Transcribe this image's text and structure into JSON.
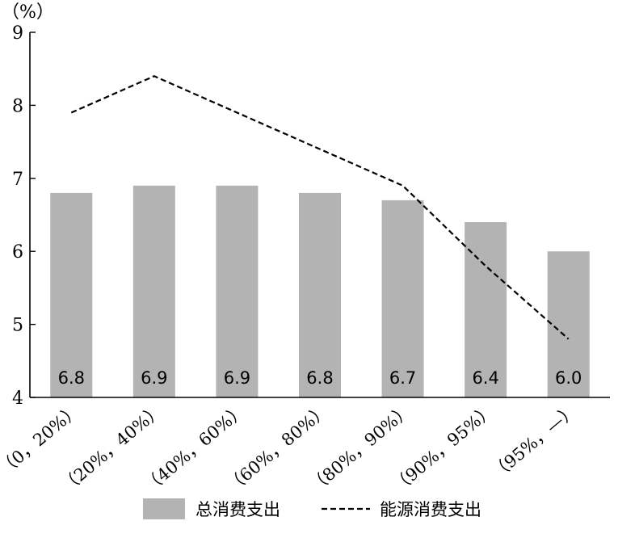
{
  "chart_data": {
    "type": "bar",
    "y_unit": "（%）",
    "categories": [
      "（0，20%）",
      "（20%，40%）",
      "（40%，60%）",
      "（60%，80%）",
      "（80%，90%）",
      "（90%，95%）",
      "（95%，—）"
    ],
    "ylim": [
      4,
      9
    ],
    "yticks": [
      "4",
      "5",
      "6",
      "7",
      "8",
      "9"
    ],
    "grid": false,
    "legend_position": "bottom",
    "series": [
      {
        "name": "总消费支出",
        "kind": "bar",
        "color": "#b3b3b3",
        "values": [
          6.8,
          6.9,
          6.9,
          6.8,
          6.7,
          6.4,
          6.0
        ],
        "labels": [
          "6.8",
          "6.9",
          "6.9",
          "6.8",
          "6.7",
          "6.4",
          "6.0"
        ]
      },
      {
        "name": "能源消费支出",
        "kind": "line",
        "style": "dashed",
        "color": "#000000",
        "values": [
          7.9,
          8.4,
          7.9,
          7.4,
          6.9,
          5.8,
          4.8
        ]
      }
    ]
  }
}
